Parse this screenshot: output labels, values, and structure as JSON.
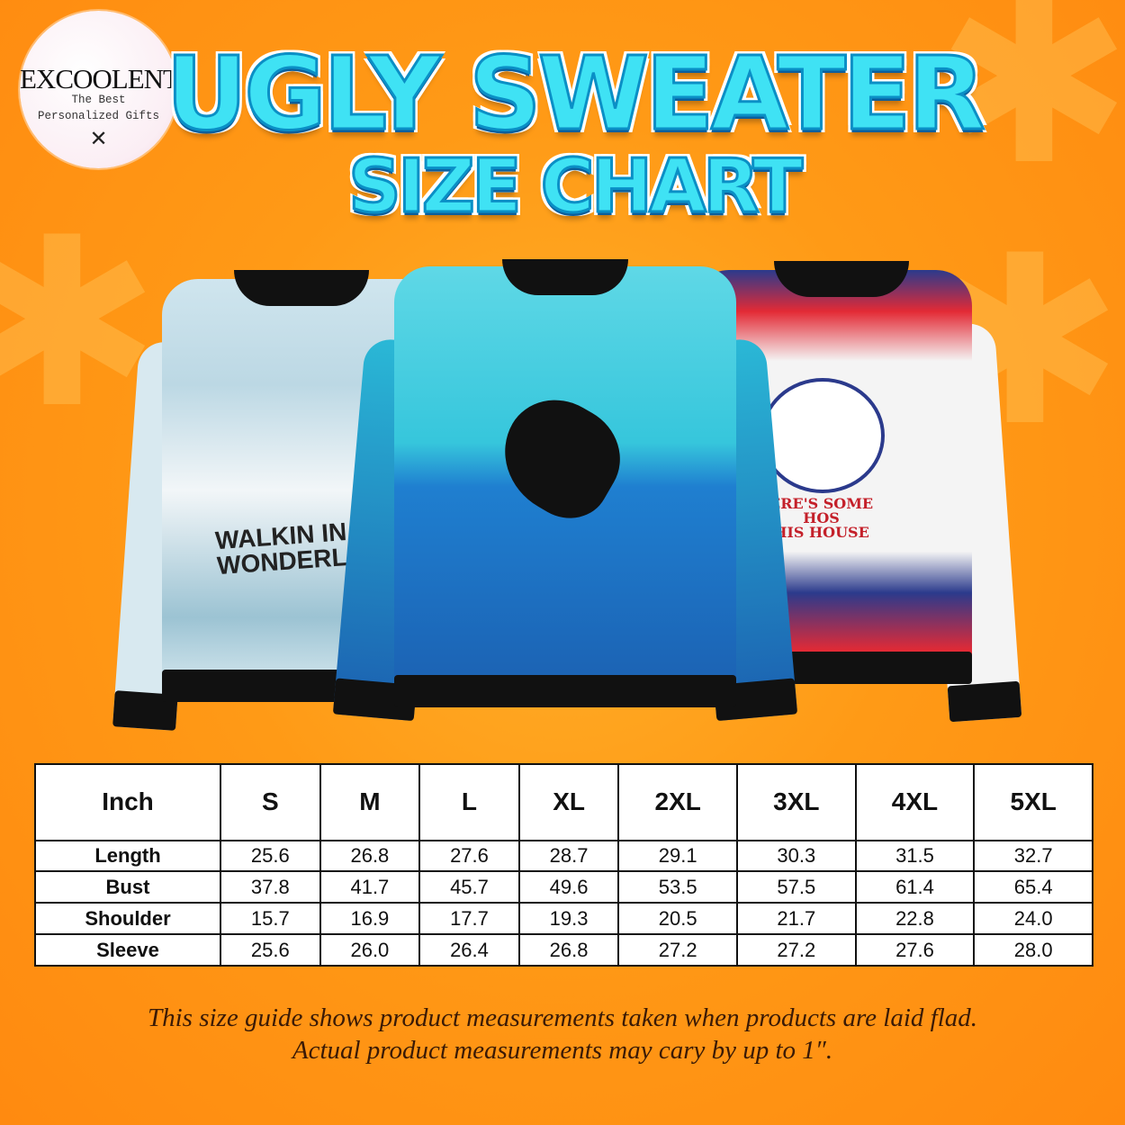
{
  "brand": {
    "name": "EXCOOLENT",
    "tagline_1": "The Best",
    "tagline_2": "Personalized Gifts"
  },
  "title": {
    "line1": "UGLY SWEATER",
    "line2": "SIZE CHART"
  },
  "sweaters": [
    {
      "text": "WALKIN IN A W\nWONDERL",
      "colors": {
        "main": "#c9e3ee",
        "accent": "#3a4a5a"
      }
    },
    {
      "text": "",
      "colors": {
        "main": "#36c6dc",
        "accent": "#1b5fb0"
      }
    },
    {
      "text": "ERE'S SOME\nHOS\nHIS HOUSE",
      "colors": {
        "main": "#f4f4f4",
        "accent": "#e32a35",
        "band": "#2b3a8c"
      }
    }
  ],
  "size_table": {
    "unit_header": "Inch",
    "sizes": [
      "S",
      "M",
      "L",
      "XL",
      "2XL",
      "3XL",
      "4XL",
      "5XL"
    ],
    "rows": [
      {
        "label": "Length",
        "values": [
          "25.6",
          "26.8",
          "27.6",
          "28.7",
          "29.1",
          "30.3",
          "31.5",
          "32.7"
        ]
      },
      {
        "label": "Bust",
        "values": [
          "37.8",
          "41.7",
          "45.7",
          "49.6",
          "53.5",
          "57.5",
          "61.4",
          "65.4"
        ]
      },
      {
        "label": "Shoulder",
        "values": [
          "15.7",
          "16.9",
          "17.7",
          "19.3",
          "20.5",
          "21.7",
          "22.8",
          "24.0"
        ]
      },
      {
        "label": "Sleeve",
        "values": [
          "25.6",
          "26.0",
          "26.4",
          "26.8",
          "27.2",
          "27.2",
          "27.6",
          "28.0"
        ]
      }
    ]
  },
  "note": {
    "line1": "This size guide shows product measurements taken when products are laid flad.",
    "line2": "Actual product measurements may cary by up to 1″."
  },
  "colors": {
    "background": "#ff9a16",
    "title_fill": "#3fe2f4",
    "title_stroke": "#0a8fc6"
  }
}
